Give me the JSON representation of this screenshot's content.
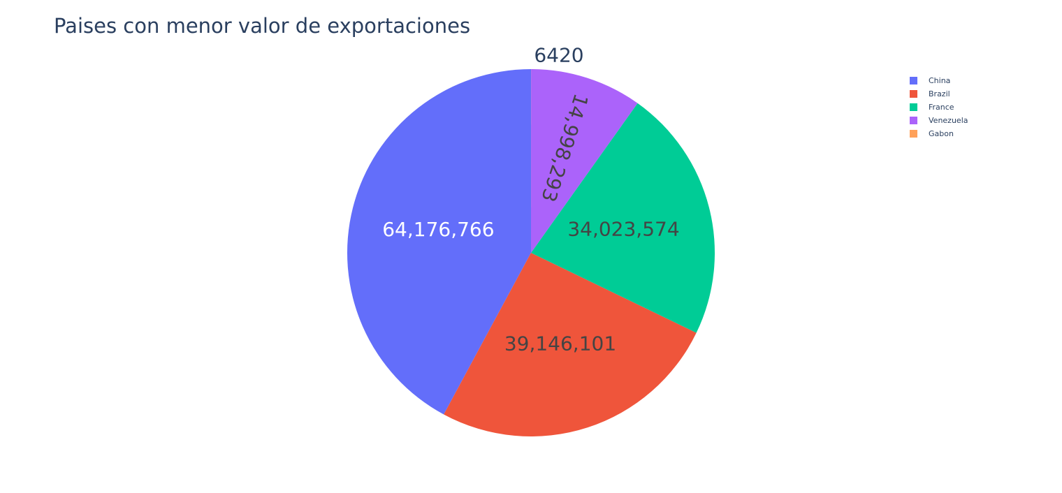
{
  "chart_data": {
    "type": "pie",
    "title": "Paises con menor valor de exportaciones",
    "categories": [
      "China",
      "Brazil",
      "France",
      "Venezuela",
      "Gabon"
    ],
    "values": [
      64176766,
      39146101,
      34023574,
      14998293,
      6420
    ],
    "value_labels": [
      "64,176,766",
      "39,146,101",
      "34,023,574",
      "14,998,293",
      "6420"
    ],
    "colors": [
      "#636efa",
      "#ef553b",
      "#00cc96",
      "#ab63fa",
      "#ffa15a"
    ],
    "direction": "counterclockwise",
    "start": "top",
    "legend": "top-right"
  }
}
